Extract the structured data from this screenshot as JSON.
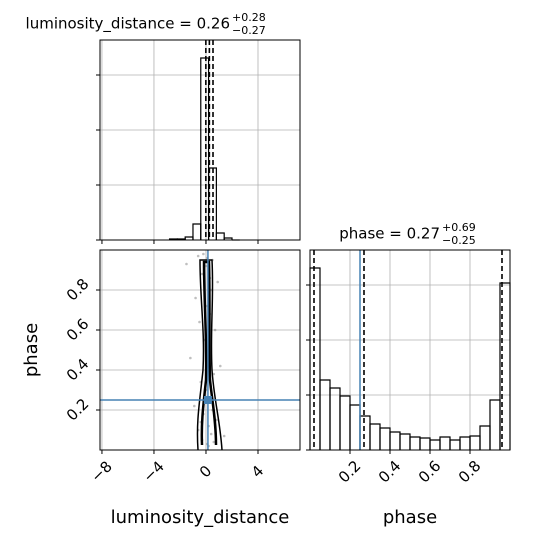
{
  "chart_data": [
    {
      "type": "histogram",
      "title": "luminosity_distance = 0.26",
      "title_upper": "+0.28",
      "title_lower": "−0.27",
      "bins": [
        -2.8,
        -2.2,
        -1.6,
        -1.0,
        -0.4,
        0.2,
        0.8,
        1.4,
        2.0,
        2.6
      ],
      "values": [
        1,
        1,
        3,
        16,
        182,
        72,
        7,
        2,
        0
      ],
      "color": "#000000",
      "quantiles": [
        -0.01,
        0.26,
        0.54
      ],
      "xlim": [
        -8.15,
        7.23
      ],
      "xticks": [
        -8,
        -4,
        0,
        4
      ],
      "ylim": [
        0,
        200
      ],
      "yticks": [
        0,
        55,
        110,
        165
      ],
      "grid": true
    },
    {
      "type": "scatter",
      "x_label": "luminosity_distance",
      "y_label": "phase",
      "x": [
        0.1,
        -0.3,
        0.4,
        -0.6,
        0.2,
        0.8,
        -0.2,
        0.5,
        -0.9,
        0.3,
        0.0,
        -0.4,
        0.6,
        1.1,
        -1.2,
        0.2,
        -0.1,
        0.7,
        -0.5,
        0.3,
        0.1,
        -0.8,
        0.4,
        0.9,
        -0.3,
        0.0,
        0.5,
        -0.6,
        1.4,
        -1.5,
        0.2,
        -0.2,
        0.6,
        0.1,
        -0.4,
        0.3
      ],
      "y": [
        0.03,
        0.05,
        0.08,
        0.1,
        0.12,
        0.15,
        0.18,
        0.2,
        0.22,
        0.26,
        0.3,
        0.34,
        0.38,
        0.42,
        0.46,
        0.5,
        0.55,
        0.6,
        0.64,
        0.68,
        0.72,
        0.76,
        0.8,
        0.84,
        0.88,
        0.92,
        0.95,
        0.97,
        0.07,
        0.93,
        0.02,
        0.98,
        0.04,
        0.96,
        0.14,
        0.86
      ],
      "color": "#808080",
      "truths": [
        0.15,
        0.25
      ],
      "truth_color": "#4682b4",
      "xlim": [
        -8.15,
        7.23
      ],
      "xticks": [
        {
          "value": -8,
          "label": "−8"
        },
        {
          "value": -4,
          "label": "−4"
        },
        0,
        4
      ],
      "ylim": [
        0,
        1
      ],
      "yticks": [
        0.2,
        0.4,
        0.6,
        0.8
      ],
      "grid": true
    },
    {
      "type": "histogram",
      "title": "phase = 0.27",
      "title_upper": "+0.69",
      "title_lower": "−0.25",
      "x_label": "phase",
      "bins": [
        0,
        0.05,
        0.1,
        0.15,
        0.2,
        0.25,
        0.3,
        0.35,
        0.4,
        0.45,
        0.5,
        0.55,
        0.6,
        0.65,
        0.7,
        0.75,
        0.8,
        0.85,
        0.9,
        0.95,
        1.0
      ],
      "values": [
        182,
        70,
        62,
        54,
        45,
        34,
        26,
        22,
        18,
        16,
        13,
        12,
        10,
        13,
        10,
        13,
        14,
        24,
        50,
        167
      ],
      "color": "#000000",
      "quantiles": [
        0.02,
        0.27,
        0.96
      ],
      "truth": 0.25,
      "truth_color": "#4682b4",
      "xlim": [
        0,
        1
      ],
      "xticks": [
        0.2,
        0.4,
        0.6,
        0.8
      ],
      "ylim": [
        0,
        200
      ],
      "yticks": [
        0,
        55,
        110,
        165
      ],
      "grid": true
    }
  ]
}
